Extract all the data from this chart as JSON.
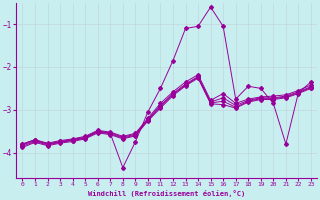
{
  "xlabel": "Windchill (Refroidissement éolien,°C)",
  "bg_color": "#c8eef0",
  "line_color": "#990099",
  "grid_color": "#c0d8dc",
  "xlim": [
    -0.5,
    23.5
  ],
  "ylim": [
    -4.6,
    -0.5
  ],
  "yticks": [
    -4,
    -3,
    -2,
    -1
  ],
  "xticks": [
    0,
    1,
    2,
    3,
    4,
    5,
    6,
    7,
    8,
    9,
    10,
    11,
    12,
    13,
    14,
    15,
    16,
    17,
    18,
    19,
    20,
    21,
    22,
    23
  ],
  "series": [
    {
      "x": [
        0,
        1,
        2,
        3,
        4,
        5,
        6,
        7,
        8,
        9,
        10,
        11,
        12,
        13,
        14,
        15,
        16,
        17,
        18,
        19,
        20,
        21,
        22,
        23
      ],
      "y": [
        -3.8,
        -3.7,
        -3.8,
        -3.75,
        -3.7,
        -3.65,
        -3.5,
        -3.55,
        -4.35,
        -3.75,
        -3.05,
        -2.5,
        -1.85,
        -1.1,
        -1.05,
        -0.6,
        -1.05,
        -2.75,
        -2.45,
        -2.5,
        -2.85,
        -3.8,
        -2.6,
        -2.35
      ]
    },
    {
      "x": [
        0,
        1,
        2,
        3,
        4,
        5,
        6,
        7,
        8,
        9,
        10,
        11,
        12,
        13,
        14,
        15,
        16,
        17,
        18,
        19,
        20,
        21,
        22,
        23
      ],
      "y": [
        -3.8,
        -3.7,
        -3.78,
        -3.72,
        -3.68,
        -3.62,
        -3.48,
        -3.52,
        -3.62,
        -3.55,
        -3.2,
        -2.85,
        -2.58,
        -2.35,
        -2.18,
        -2.78,
        -2.62,
        -2.85,
        -2.75,
        -2.7,
        -2.68,
        -2.65,
        -2.55,
        -2.42
      ]
    },
    {
      "x": [
        0,
        1,
        2,
        3,
        4,
        5,
        6,
        7,
        8,
        9,
        10,
        11,
        12,
        13,
        14,
        15,
        16,
        17,
        18,
        19,
        20,
        21,
        22,
        23
      ],
      "y": [
        -3.82,
        -3.72,
        -3.8,
        -3.74,
        -3.7,
        -3.64,
        -3.5,
        -3.54,
        -3.64,
        -3.57,
        -3.22,
        -2.9,
        -2.62,
        -2.4,
        -2.22,
        -2.82,
        -2.72,
        -2.9,
        -2.78,
        -2.72,
        -2.72,
        -2.68,
        -2.58,
        -2.46
      ]
    },
    {
      "x": [
        0,
        1,
        2,
        3,
        4,
        5,
        6,
        7,
        8,
        9,
        10,
        11,
        12,
        13,
        14,
        15,
        16,
        17,
        18,
        19,
        20,
        21,
        22,
        23
      ],
      "y": [
        -3.85,
        -3.74,
        -3.82,
        -3.76,
        -3.72,
        -3.66,
        -3.52,
        -3.56,
        -3.66,
        -3.59,
        -3.24,
        -2.93,
        -2.64,
        -2.42,
        -2.24,
        -2.84,
        -2.8,
        -2.94,
        -2.8,
        -2.74,
        -2.74,
        -2.7,
        -2.6,
        -2.48
      ]
    },
    {
      "x": [
        0,
        1,
        2,
        3,
        4,
        5,
        6,
        7,
        8,
        9,
        10,
        11,
        12,
        13,
        14,
        15,
        16,
        17,
        18,
        19,
        20,
        21,
        22,
        23
      ],
      "y": [
        -3.88,
        -3.76,
        -3.84,
        -3.78,
        -3.74,
        -3.68,
        -3.54,
        -3.58,
        -3.68,
        -3.61,
        -3.26,
        -2.96,
        -2.67,
        -2.44,
        -2.26,
        -2.86,
        -2.88,
        -2.96,
        -2.82,
        -2.76,
        -2.76,
        -2.72,
        -2.62,
        -2.5
      ]
    }
  ]
}
